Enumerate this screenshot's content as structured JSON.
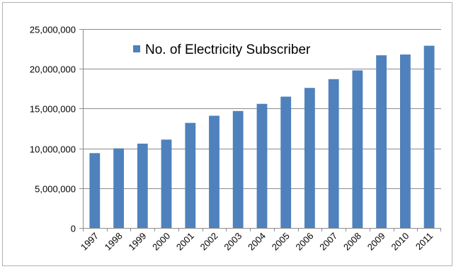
{
  "chart_data": {
    "type": "bar",
    "title": "",
    "xlabel": "",
    "ylabel": "",
    "categories": [
      "1997",
      "1998",
      "1999",
      "2000",
      "2001",
      "2002",
      "2003",
      "2004",
      "2005",
      "2006",
      "2007",
      "2008",
      "2009",
      "2010",
      "2011"
    ],
    "series": [
      {
        "name": "No. of Electricity Subscriber",
        "color": "#4f81bd",
        "values": [
          9400000,
          10000000,
          10600000,
          11100000,
          13200000,
          14100000,
          14700000,
          15600000,
          16500000,
          17600000,
          18700000,
          19800000,
          21700000,
          21800000,
          22900000
        ]
      }
    ],
    "ylim": [
      0,
      25000000
    ],
    "yticks": [
      0,
      5000000,
      10000000,
      15000000,
      20000000,
      25000000
    ],
    "ytick_labels": [
      "0",
      "5,000,000",
      "10,000,000",
      "15,000,000",
      "20,000,000",
      "25,000,000"
    ],
    "grid": true,
    "legend_position": "top-center inside plot",
    "x_tick_rotation": "diagonal"
  }
}
